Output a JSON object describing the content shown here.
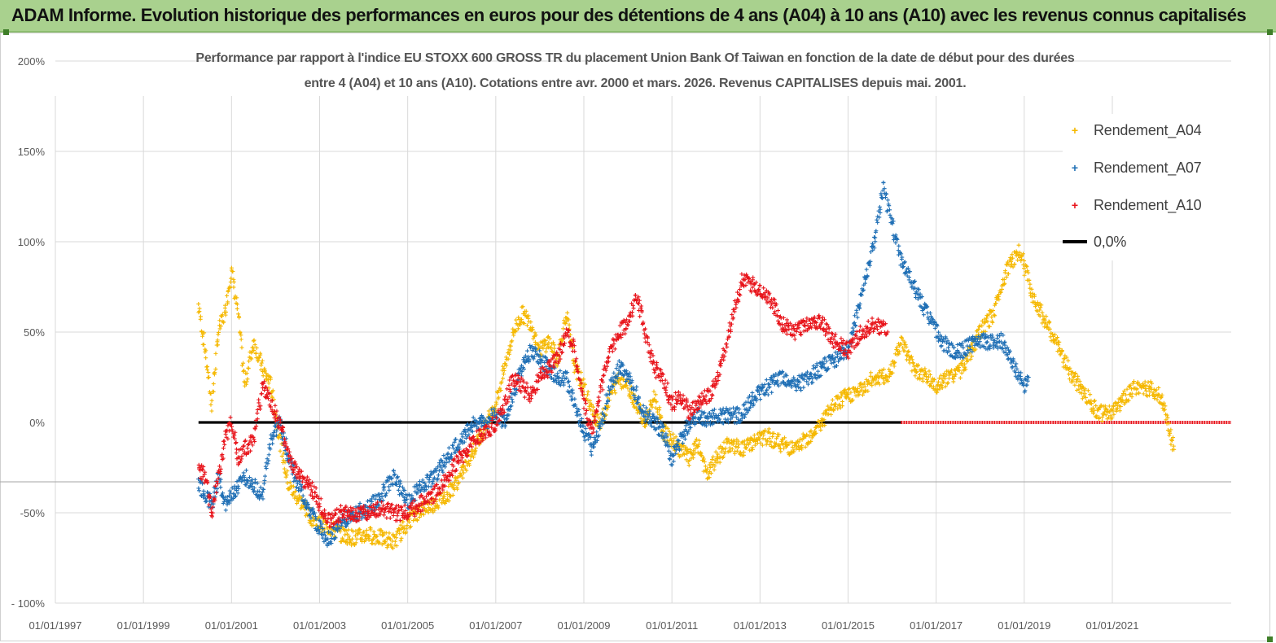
{
  "banner": {
    "title": "ADAM Informe. Evolution historique des performances en euros pour des détentions de 4 ans (A04) à 10 ans (A10) avec les revenus connus capitalisés"
  },
  "colors": {
    "banner_bg": "#a9d18e",
    "A04": "#f5b800",
    "A07": "#1f6fb5",
    "A10": "#e8141b",
    "zero_line": "#000000",
    "grid": "#d9d9d9"
  },
  "chart_data": {
    "type": "scatter",
    "title_line1": "Performance par rapport à l'indice EU STOXX 600 GROSS TR  du placement Union Bank Of Taiwan  en fonction de la date de début pour des durées",
    "title_line2": "entre 4 (A04) et 10 ans (A10). Cotations entre avr. 2000 et mars. 2026. Revenus CAPITALISES depuis mai. 2001.",
    "x_range": [
      1997.0,
      2023.7
    ],
    "y_range": [
      -100,
      200
    ],
    "x_tick_years": [
      1997,
      1999,
      2001,
      2003,
      2005,
      2007,
      2009,
      2011,
      2013,
      2015,
      2017,
      2019,
      2021
    ],
    "x_tick_labels": [
      "01/01/1997",
      "01/01/1999",
      "01/01/2001",
      "01/01/2003",
      "01/01/2005",
      "01/01/2007",
      "01/01/2009",
      "01/01/2011",
      "01/01/2013",
      "01/01/2015",
      "01/01/2017",
      "01/01/2019",
      "01/01/2021"
    ],
    "y_ticks": [
      -100,
      -50,
      0,
      50,
      100,
      150,
      200
    ],
    "y_tick_labels": [
      "- 100%",
      "-50%",
      "0%",
      "50%",
      "100%",
      "150%",
      "200%"
    ],
    "legend": [
      "Rendement_A04",
      "Rendement_A07",
      "Rendement_A10",
      "0,0%"
    ],
    "series": [
      {
        "name": "Rendement_A04",
        "x": [
          2000.25,
          2000.4,
          2000.55,
          2000.7,
          2000.85,
          2001.0,
          2001.15,
          2001.3,
          2001.5,
          2001.7,
          2001.9,
          2002.1,
          2002.3,
          2002.6,
          2002.9,
          2003.2,
          2003.5,
          2003.8,
          2004.1,
          2004.4,
          2004.7,
          2005.0,
          2005.3,
          2005.6,
          2005.9,
          2006.2,
          2006.5,
          2006.8,
          2007.0,
          2007.2,
          2007.4,
          2007.6,
          2007.8,
          2008.0,
          2008.2,
          2008.4,
          2008.6,
          2008.8,
          2009.0,
          2009.2,
          2009.4,
          2009.6,
          2009.8,
          2010.0,
          2010.2,
          2010.4,
          2010.6,
          2010.8,
          2011.0,
          2011.2,
          2011.4,
          2011.6,
          2011.8,
          2012.0,
          2012.3,
          2012.6,
          2012.9,
          2013.2,
          2013.5,
          2013.8,
          2014.1,
          2014.4,
          2014.7,
          2015.0,
          2015.3,
          2015.6,
          2015.9,
          2016.2,
          2016.5,
          2016.8,
          2017.0,
          2017.3,
          2017.6,
          2017.9,
          2018.0,
          2018.3,
          2018.6,
          2018.9,
          2019.2,
          2019.5,
          2019.8,
          2020.1,
          2020.4,
          2020.7,
          2021.0,
          2021.3,
          2021.6,
          2021.9,
          2022.1,
          2022.4
        ],
        "y": [
          65,
          40,
          10,
          50,
          60,
          85,
          60,
          20,
          45,
          30,
          20,
          -10,
          -35,
          -45,
          -55,
          -58,
          -62,
          -64,
          -62,
          -64,
          -66,
          -55,
          -48,
          -45,
          -40,
          -30,
          -15,
          0,
          10,
          30,
          50,
          60,
          55,
          40,
          45,
          35,
          60,
          30,
          20,
          5,
          0,
          15,
          25,
          20,
          10,
          0,
          15,
          -5,
          -10,
          -15,
          -20,
          -12,
          -30,
          -20,
          -12,
          -15,
          -10,
          -8,
          -12,
          -15,
          -8,
          0,
          10,
          15,
          18,
          25,
          25,
          45,
          30,
          25,
          20,
          25,
          30,
          45,
          50,
          60,
          85,
          95,
          70,
          55,
          40,
          25,
          15,
          5,
          5,
          15,
          20,
          18,
          15,
          -15
        ]
      },
      {
        "name": "Rendement_A07",
        "x": [
          2000.25,
          2000.4,
          2000.55,
          2000.7,
          2000.85,
          2001.0,
          2001.15,
          2001.3,
          2001.5,
          2001.7,
          2001.9,
          2002.1,
          2002.3,
          2002.6,
          2002.9,
          2003.2,
          2003.5,
          2003.8,
          2004.1,
          2004.4,
          2004.7,
          2005.0,
          2005.3,
          2005.6,
          2005.9,
          2006.2,
          2006.5,
          2006.8,
          2007.0,
          2007.2,
          2007.4,
          2007.6,
          2007.8,
          2008.0,
          2008.2,
          2008.4,
          2008.6,
          2008.8,
          2009.0,
          2009.2,
          2009.4,
          2009.6,
          2009.8,
          2010.0,
          2010.2,
          2010.4,
          2010.6,
          2010.8,
          2011.0,
          2011.2,
          2011.4,
          2011.6,
          2011.8,
          2012.0,
          2012.3,
          2012.6,
          2012.9,
          2013.2,
          2013.5,
          2013.8,
          2014.1,
          2014.4,
          2014.7,
          2015.0,
          2015.2,
          2015.4,
          2015.6,
          2015.8,
          2016.0,
          2016.2,
          2016.4,
          2016.6,
          2016.8,
          2017.0,
          2017.3,
          2017.6,
          2017.9,
          2018.2,
          2018.5,
          2018.8,
          2019.0,
          2019.1
        ],
        "y": [
          -35,
          -40,
          -45,
          -30,
          -45,
          -40,
          -35,
          -30,
          -35,
          -40,
          -10,
          0,
          -20,
          -40,
          -55,
          -65,
          -55,
          -50,
          -48,
          -40,
          -30,
          -45,
          -35,
          -30,
          -20,
          -10,
          0,
          0,
          5,
          0,
          15,
          30,
          40,
          35,
          30,
          25,
          25,
          10,
          -5,
          -15,
          0,
          20,
          30,
          25,
          15,
          5,
          0,
          -5,
          -20,
          -10,
          0,
          5,
          0,
          5,
          3,
          5,
          15,
          20,
          25,
          20,
          25,
          30,
          35,
          40,
          60,
          80,
          100,
          130,
          110,
          90,
          80,
          70,
          60,
          50,
          40,
          40,
          45,
          45,
          45,
          30,
          20,
          25
        ]
      },
      {
        "name": "Rendement_A10",
        "x": [
          2000.25,
          2000.4,
          2000.55,
          2000.7,
          2000.85,
          2001.0,
          2001.15,
          2001.3,
          2001.5,
          2001.7,
          2001.9,
          2002.1,
          2002.3,
          2002.6,
          2002.9,
          2003.2,
          2003.5,
          2003.8,
          2004.1,
          2004.4,
          2004.7,
          2005.0,
          2005.3,
          2005.6,
          2005.9,
          2006.2,
          2006.5,
          2006.8,
          2007.0,
          2007.2,
          2007.4,
          2007.6,
          2007.8,
          2008.0,
          2008.2,
          2008.4,
          2008.6,
          2008.8,
          2009.0,
          2009.2,
          2009.4,
          2009.6,
          2009.8,
          2010.0,
          2010.2,
          2010.4,
          2010.6,
          2010.8,
          2011.0,
          2011.2,
          2011.4,
          2011.6,
          2011.8,
          2012.0,
          2012.3,
          2012.6,
          2012.9,
          2013.2,
          2013.5,
          2013.8,
          2014.1,
          2014.4,
          2014.7,
          2015.0,
          2015.3,
          2015.6,
          2015.9
        ],
        "y": [
          -25,
          -30,
          -50,
          -30,
          -10,
          0,
          -20,
          -15,
          -10,
          20,
          10,
          0,
          -20,
          -30,
          -40,
          -55,
          -50,
          -52,
          -50,
          -48,
          -50,
          -50,
          -45,
          -40,
          -30,
          -20,
          -10,
          -5,
          0,
          10,
          25,
          20,
          15,
          25,
          30,
          35,
          50,
          40,
          10,
          -5,
          20,
          40,
          50,
          55,
          70,
          50,
          30,
          25,
          10,
          15,
          5,
          10,
          15,
          20,
          50,
          80,
          75,
          70,
          55,
          50,
          55,
          55,
          45,
          40,
          50,
          55,
          50
        ]
      }
    ]
  }
}
